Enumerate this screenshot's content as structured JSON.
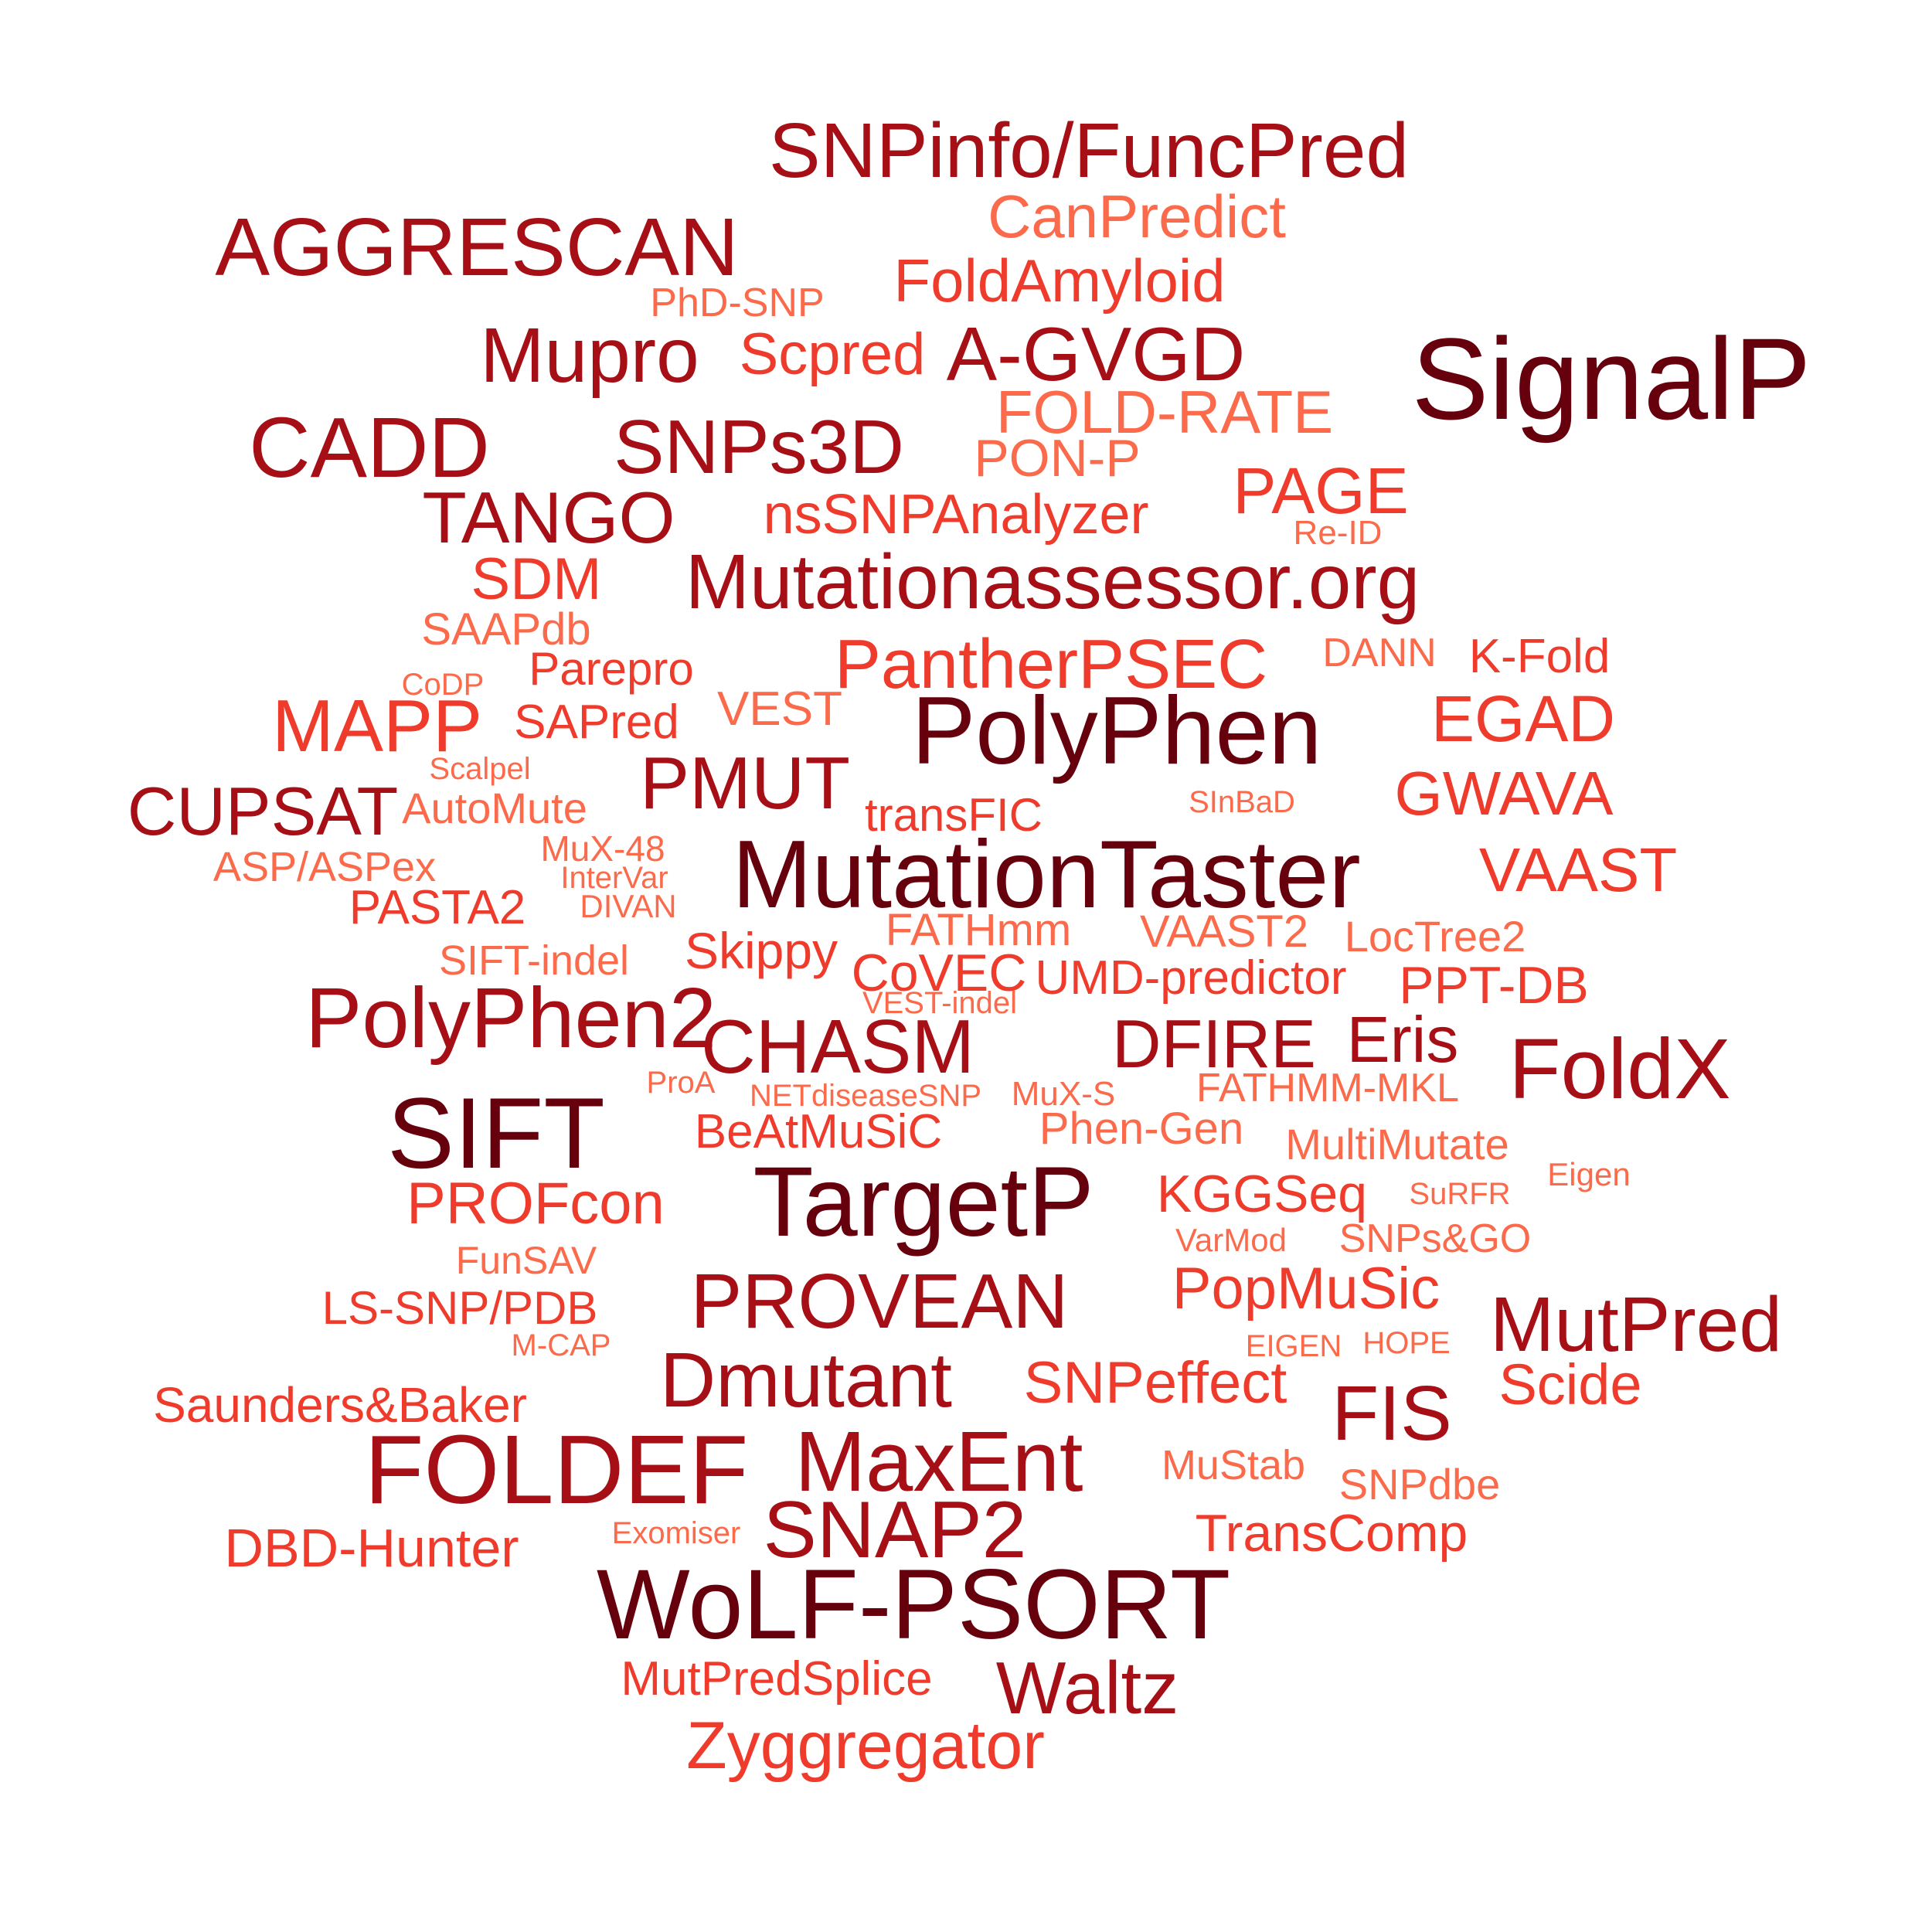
{
  "palette": {
    "dark": "#67000d",
    "deep": "#a50f15",
    "red": "#cb181d",
    "orange": "#ef3b2c",
    "salmon": "#fb6a4a"
  },
  "words": [
    {
      "text": "SNPinfo/FuncPred",
      "color": "#a50f15"
    },
    {
      "text": "CanPredict",
      "color": "#fb6a4a"
    },
    {
      "text": "AGGRESCAN",
      "color": "#a50f15"
    },
    {
      "text": "FoldAmyloid",
      "color": "#ef3b2c"
    },
    {
      "text": "PhD-SNP",
      "color": "#fb6a4a"
    },
    {
      "text": "SignalP",
      "color": "#67000d"
    },
    {
      "text": "Mupro",
      "color": "#a50f15"
    },
    {
      "text": "Scpred",
      "color": "#ef3b2c"
    },
    {
      "text": "A-GVGD",
      "color": "#a50f15"
    },
    {
      "text": "FOLD-RATE",
      "color": "#fb6a4a"
    },
    {
      "text": "CADD",
      "color": "#a50f15"
    },
    {
      "text": "SNPs3D",
      "color": "#a50f15"
    },
    {
      "text": "PON-P",
      "color": "#fb6a4a"
    },
    {
      "text": "PAGE",
      "color": "#ef3b2c"
    },
    {
      "text": "TANGO",
      "color": "#a50f15"
    },
    {
      "text": "nsSNPAnalyzer",
      "color": "#ef3b2c"
    },
    {
      "text": "Re-ID",
      "color": "#fb6a4a"
    },
    {
      "text": "SDM",
      "color": "#ef3b2c"
    },
    {
      "text": "Mutationassessor.org",
      "color": "#a50f15"
    },
    {
      "text": "SAAPdb",
      "color": "#fb6a4a"
    },
    {
      "text": "DANN",
      "color": "#fb6a4a"
    },
    {
      "text": "K-Fold",
      "color": "#ef3b2c"
    },
    {
      "text": "PantherPSEC",
      "color": "#ef3b2c"
    },
    {
      "text": "Parepro",
      "color": "#ef3b2c"
    },
    {
      "text": "CoDP",
      "color": "#fb6a4a"
    },
    {
      "text": "MAPP",
      "color": "#ef3b2c"
    },
    {
      "text": "SAPred",
      "color": "#ef3b2c"
    },
    {
      "text": "VEST",
      "color": "#fb6a4a"
    },
    {
      "text": "PolyPhen",
      "color": "#67000d"
    },
    {
      "text": "EGAD",
      "color": "#ef3b2c"
    },
    {
      "text": "Scalpel",
      "color": "#fb6a4a"
    },
    {
      "text": "PMUT",
      "color": "#a50f15"
    },
    {
      "text": "CUPSAT",
      "color": "#a50f15"
    },
    {
      "text": "AutoMute",
      "color": "#fb6a4a"
    },
    {
      "text": "transFIC",
      "color": "#ef3b2c"
    },
    {
      "text": "SInBaD",
      "color": "#fb6a4a"
    },
    {
      "text": "GWAVA",
      "color": "#ef3b2c"
    },
    {
      "text": "MuX-48",
      "color": "#fb6a4a"
    },
    {
      "text": "ASP/ASPex",
      "color": "#fb6a4a"
    },
    {
      "text": "MutationTaster",
      "color": "#67000d"
    },
    {
      "text": "InterVar",
      "color": "#fb6a4a"
    },
    {
      "text": "VAAST",
      "color": "#ef3b2c"
    },
    {
      "text": "PASTA2",
      "color": "#ef3b2c"
    },
    {
      "text": "DIVAN",
      "color": "#fb6a4a"
    },
    {
      "text": "FATHmm",
      "color": "#fb6a4a"
    },
    {
      "text": "VAAST2",
      "color": "#fb6a4a"
    },
    {
      "text": "LocTree2",
      "color": "#fb6a4a"
    },
    {
      "text": "SIFT-indel",
      "color": "#fb6a4a"
    },
    {
      "text": "Skippy",
      "color": "#ef3b2c"
    },
    {
      "text": "CoVEC",
      "color": "#ef3b2c"
    },
    {
      "text": "UMD-predictor",
      "color": "#ef3b2c"
    },
    {
      "text": "PPT-DB",
      "color": "#ef3b2c"
    },
    {
      "text": "PolyPhen2",
      "color": "#a50f15"
    },
    {
      "text": "VEST-indel",
      "color": "#fb6a4a"
    },
    {
      "text": "CHASM",
      "color": "#a50f15"
    },
    {
      "text": "DFIRE",
      "color": "#a50f15"
    },
    {
      "text": "Eris",
      "color": "#a50f15"
    },
    {
      "text": "FoldX",
      "color": "#a50f15"
    },
    {
      "text": "SIFT",
      "color": "#67000d"
    },
    {
      "text": "ProA",
      "color": "#fb6a4a"
    },
    {
      "text": "NETdiseaseSNP",
      "color": "#fb6a4a"
    },
    {
      "text": "MuX-S",
      "color": "#fb6a4a"
    },
    {
      "text": "FATHMM-MKL",
      "color": "#fb6a4a"
    },
    {
      "text": "BeAtMuSiC",
      "color": "#ef3b2c"
    },
    {
      "text": "Phen-Gen",
      "color": "#fb6a4a"
    },
    {
      "text": "MultiMutate",
      "color": "#fb6a4a"
    },
    {
      "text": "TargetP",
      "color": "#67000d"
    },
    {
      "text": "Eigen",
      "color": "#fb6a4a"
    },
    {
      "text": "PROFcon",
      "color": "#ef3b2c"
    },
    {
      "text": "KGGSeq",
      "color": "#ef3b2c"
    },
    {
      "text": "SuRFR",
      "color": "#fb6a4a"
    },
    {
      "text": "VarMod",
      "color": "#fb6a4a"
    },
    {
      "text": "SNPs&GO",
      "color": "#fb6a4a"
    },
    {
      "text": "FunSAV",
      "color": "#fb6a4a"
    },
    {
      "text": "PROVEAN",
      "color": "#a50f15"
    },
    {
      "text": "PopMuSic",
      "color": "#ef3b2c"
    },
    {
      "text": "LS-SNP/PDB",
      "color": "#ef3b2c"
    },
    {
      "text": "MutPred",
      "color": "#a50f15"
    },
    {
      "text": "M-CAP",
      "color": "#fb6a4a"
    },
    {
      "text": "EIGEN",
      "color": "#fb6a4a"
    },
    {
      "text": "HOPE",
      "color": "#fb6a4a"
    },
    {
      "text": "Dmutant",
      "color": "#a50f15"
    },
    {
      "text": "SNPeffect",
      "color": "#ef3b2c"
    },
    {
      "text": "Scide",
      "color": "#ef3b2c"
    },
    {
      "text": "Saunders&Baker",
      "color": "#ef3b2c"
    },
    {
      "text": "FIS",
      "color": "#a50f15"
    },
    {
      "text": "FOLDEF",
      "color": "#a50f15"
    },
    {
      "text": "MaxEnt",
      "color": "#a50f15"
    },
    {
      "text": "MuStab",
      "color": "#fb6a4a"
    },
    {
      "text": "SNPdbe",
      "color": "#fb6a4a"
    },
    {
      "text": "SNAP2",
      "color": "#a50f15"
    },
    {
      "text": "TransComp",
      "color": "#ef3b2c"
    },
    {
      "text": "DBD-Hunter",
      "color": "#ef3b2c"
    },
    {
      "text": "Exomiser",
      "color": "#fb6a4a"
    },
    {
      "text": "WoLF-PSORT",
      "color": "#67000d"
    },
    {
      "text": "MutPredSplice",
      "color": "#ef3b2c"
    },
    {
      "text": "Waltz",
      "color": "#a50f15"
    },
    {
      "text": "Zyggregator",
      "color": "#ef3b2c"
    }
  ]
}
